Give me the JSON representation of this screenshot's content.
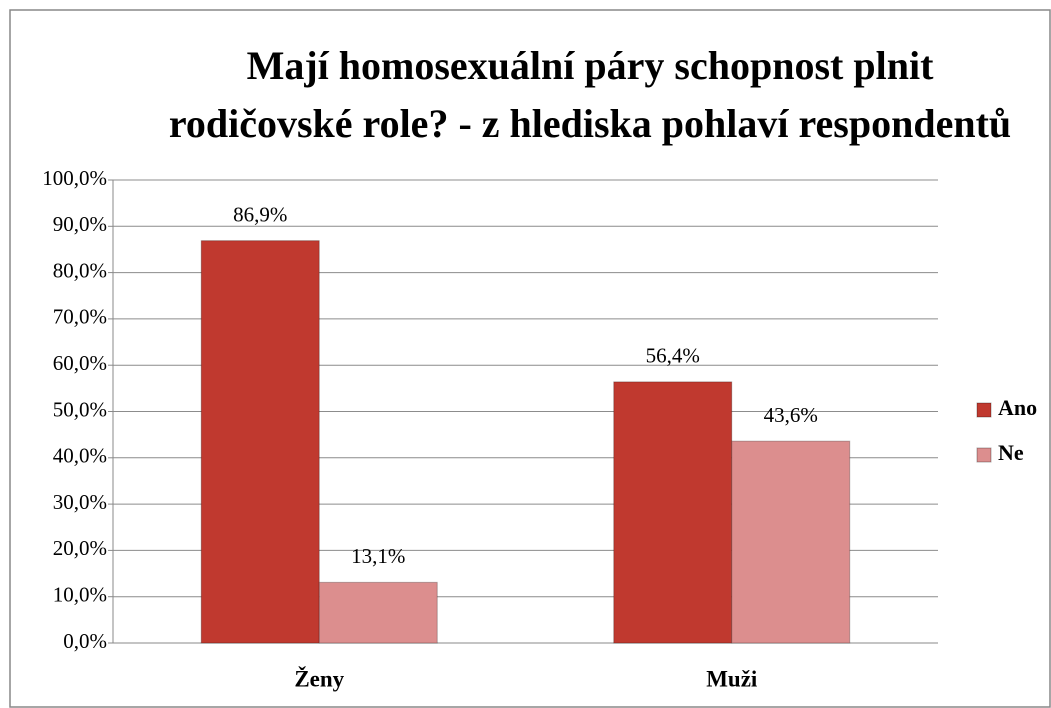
{
  "chart_data": {
    "type": "bar",
    "title": [
      "Mají homosexuální páry schopnost plnit",
      "rodičovské role? - z hlediska pohlaví respondentů"
    ],
    "categories": [
      "Ženy",
      "Muži"
    ],
    "series": [
      {
        "name": "Ano",
        "color": "#c0392f",
        "values": [
          86.9,
          56.4
        ],
        "value_labels": [
          "86,9%",
          "56,4%"
        ]
      },
      {
        "name": "Ne",
        "color": "#dc8e8e",
        "values": [
          13.1,
          43.6
        ],
        "value_labels": [
          "13,1%",
          "43,6%"
        ]
      }
    ],
    "ylim": [
      0,
      100
    ],
    "yticks": [
      {
        "value": 0,
        "label": "0,0%"
      },
      {
        "value": 10,
        "label": "10,0%"
      },
      {
        "value": 20,
        "label": "20,0%"
      },
      {
        "value": 30,
        "label": "30,0%"
      },
      {
        "value": 40,
        "label": "40,0%"
      },
      {
        "value": 50,
        "label": "50,0%"
      },
      {
        "value": 60,
        "label": "60,0%"
      },
      {
        "value": 70,
        "label": "70,0%"
      },
      {
        "value": 80,
        "label": "80,0%"
      },
      {
        "value": 90,
        "label": "90,0%"
      },
      {
        "value": 100,
        "label": "100,0%"
      }
    ],
    "grid": true,
    "legend": "right"
  }
}
